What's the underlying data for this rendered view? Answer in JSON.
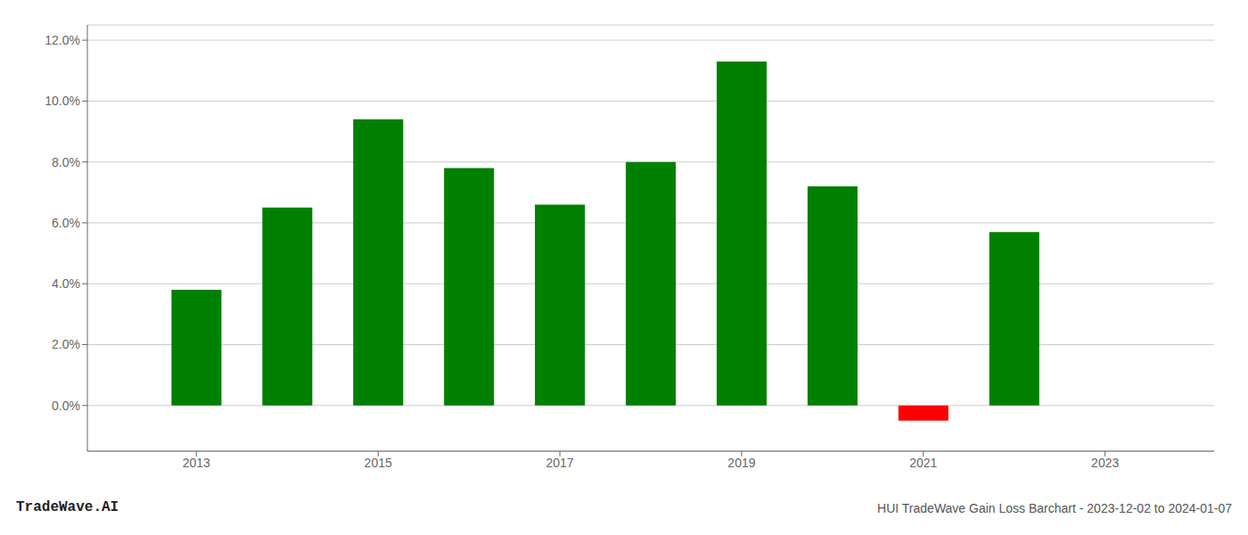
{
  "chart_data": {
    "type": "bar",
    "x": [
      2013,
      2014,
      2015,
      2016,
      2017,
      2018,
      2019,
      2020,
      2021,
      2022,
      2023
    ],
    "values": [
      0.038,
      0.065,
      0.094,
      0.078,
      0.066,
      0.08,
      0.113,
      0.072,
      -0.005,
      0.057,
      0.0
    ],
    "colors": [
      "#008000",
      "#008000",
      "#008000",
      "#008000",
      "#008000",
      "#008000",
      "#008000",
      "#008000",
      "#ff0000",
      "#008000",
      "#008000"
    ],
    "xlim": [
      2011.8,
      2024.2
    ],
    "xticks": [
      2013,
      2015,
      2017,
      2019,
      2021,
      2023
    ],
    "ylim": [
      -0.015,
      0.125
    ],
    "yticks": [
      {
        "value": 0.0,
        "label": "0.0%"
      },
      {
        "value": 0.02,
        "label": "2.0%"
      },
      {
        "value": 0.04,
        "label": "4.0%"
      },
      {
        "value": 0.06,
        "label": "6.0%"
      },
      {
        "value": 0.08,
        "label": "8.0%"
      },
      {
        "value": 0.1,
        "label": "10.0%"
      },
      {
        "value": 0.12,
        "label": "12.0%"
      }
    ],
    "grid": true,
    "annotations": [
      "TradeWave.AI",
      "HUI TradeWave Gain Loss Barchart - 2023-12-02 to 2024-01-07"
    ]
  }
}
